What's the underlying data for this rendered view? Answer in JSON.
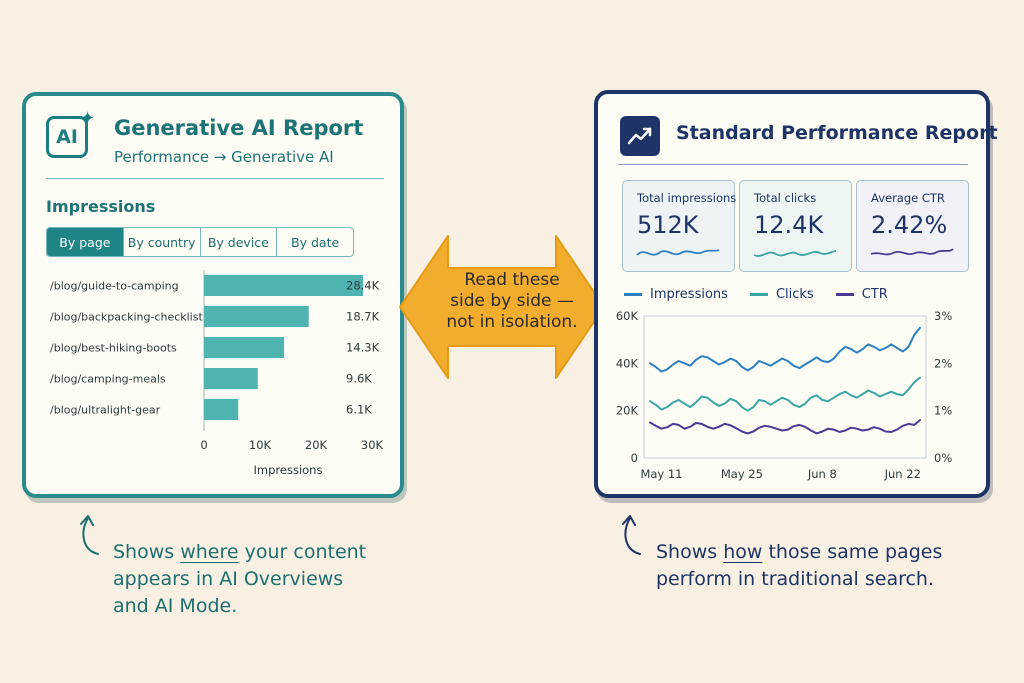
{
  "left_card": {
    "logo_text": "AI",
    "logo_icon": "ai-sparkle-icon",
    "title": "Generative AI Report",
    "subtitle": "Performance → Generative AI",
    "section_label": "Impressions",
    "tabs": [
      "By page",
      "By country",
      "By device",
      "By date"
    ],
    "active_tab": "By page",
    "colors": {
      "accent": "#2a8a8c",
      "bar": "#4fb3b0"
    }
  },
  "right_card": {
    "icon": "trend-chart-icon",
    "title": "Standard Performance Report",
    "kpis": [
      {
        "label": "Total impressions",
        "value": "512K",
        "color": "#2f80c2"
      },
      {
        "label": "Total clicks",
        "value": "12.4K",
        "color": "#3aa6a6"
      },
      {
        "label": "Average CTR",
        "value": "2.42%",
        "color": "#4b3a95"
      }
    ],
    "colors": {
      "accent": "#1e3466"
    }
  },
  "center_arrow": {
    "lines": [
      "Read these",
      "side by side —",
      "not in isolation."
    ],
    "color": "#f2ad2f"
  },
  "captions": {
    "left": {
      "line1_pre": "Shows ",
      "line1_emph": "where",
      "line1_post": " your content",
      "line2": "appears in AI Overviews",
      "line3": "and AI Mode."
    },
    "right": {
      "line1_pre": "Shows ",
      "line1_emph": "how",
      "line1_post": " those same pages",
      "line2": "perform in traditional search."
    }
  },
  "chart_data": [
    {
      "type": "bar",
      "orientation": "horizontal",
      "categories": [
        "/blog/guide-to-camping",
        "/blog/backpacking-checklist",
        "/blog/best-hiking-boots",
        "/blog/camping-meals",
        "/blog/ultralight-gear"
      ],
      "values": [
        28400,
        18700,
        14300,
        9600,
        6100
      ],
      "value_labels": [
        "28.4K",
        "18.7K",
        "14.3K",
        "9.6K",
        "6.1K"
      ],
      "xlabel": "Impressions",
      "xlim": [
        0,
        30000
      ],
      "xticks": [
        0,
        10000,
        20000,
        30000
      ],
      "xtick_labels": [
        "0",
        "10K",
        "20K",
        "30K"
      ]
    },
    {
      "type": "line",
      "legend": "top",
      "x": [
        "May 9",
        "May 10",
        "May 11",
        "May 12",
        "May 13",
        "May 14",
        "May 15",
        "May 16",
        "May 17",
        "May 18",
        "May 19",
        "May 20",
        "May 21",
        "May 22",
        "May 23",
        "May 24",
        "May 25",
        "May 26",
        "May 27",
        "May 28",
        "May 29",
        "May 30",
        "May 31",
        "Jun 1",
        "Jun 2",
        "Jun 3",
        "Jun 4",
        "Jun 5",
        "Jun 6",
        "Jun 7",
        "Jun 8",
        "Jun 9",
        "Jun 10",
        "Jun 11",
        "Jun 12",
        "Jun 13",
        "Jun 14",
        "Jun 15",
        "Jun 16",
        "Jun 17",
        "Jun 18",
        "Jun 19",
        "Jun 20",
        "Jun 21",
        "Jun 22",
        "Jun 23",
        "Jun 24",
        "Jun 25"
      ],
      "xticks": [
        "May 11",
        "May 25",
        "Jun 8",
        "Jun 22"
      ],
      "series": [
        {
          "name": "Impressions",
          "axis": "left",
          "color": "#2f80c2",
          "values": [
            40000,
            38500,
            36500,
            37500,
            39500,
            41000,
            40000,
            39000,
            41500,
            43000,
            42500,
            41000,
            39500,
            40500,
            42000,
            41000,
            38500,
            37000,
            38500,
            41000,
            40000,
            39000,
            40500,
            42000,
            41000,
            39000,
            38000,
            39500,
            41000,
            42500,
            41000,
            40500,
            42000,
            45000,
            47000,
            46000,
            44500,
            46000,
            48000,
            47000,
            45500,
            46500,
            48000,
            46500,
            45000,
            47000,
            52000,
            55000
          ]
        },
        {
          "name": "Clicks",
          "axis": "left",
          "color": "#3aa6a6",
          "values": [
            24000,
            22500,
            20500,
            21500,
            23500,
            24500,
            23000,
            21500,
            23500,
            26000,
            25500,
            23500,
            22000,
            23000,
            25000,
            24000,
            21500,
            20000,
            21500,
            24500,
            24000,
            22500,
            24000,
            25500,
            24500,
            22500,
            21500,
            23000,
            25500,
            26500,
            24500,
            24000,
            25500,
            27000,
            28000,
            26500,
            25500,
            27000,
            28500,
            27500,
            26000,
            27000,
            28000,
            27000,
            26500,
            29000,
            32000,
            34000
          ]
        },
        {
          "name": "CTR",
          "axis": "right",
          "color": "#4b3a95",
          "values": [
            0.75,
            0.68,
            0.62,
            0.65,
            0.72,
            0.7,
            0.62,
            0.66,
            0.74,
            0.72,
            0.66,
            0.62,
            0.66,
            0.72,
            0.69,
            0.63,
            0.56,
            0.52,
            0.56,
            0.64,
            0.68,
            0.66,
            0.62,
            0.58,
            0.6,
            0.67,
            0.7,
            0.66,
            0.58,
            0.52,
            0.56,
            0.62,
            0.6,
            0.55,
            0.58,
            0.64,
            0.62,
            0.58,
            0.6,
            0.65,
            0.62,
            0.56,
            0.55,
            0.6,
            0.68,
            0.72,
            0.7,
            0.8
          ]
        }
      ],
      "ylim_left": [
        0,
        60000
      ],
      "yticks_left": [
        "0",
        "20K",
        "40K",
        "60K"
      ],
      "ylim_right": [
        0,
        3
      ],
      "yticks_right": [
        "0%",
        "1%",
        "2%",
        "3%"
      ]
    }
  ]
}
